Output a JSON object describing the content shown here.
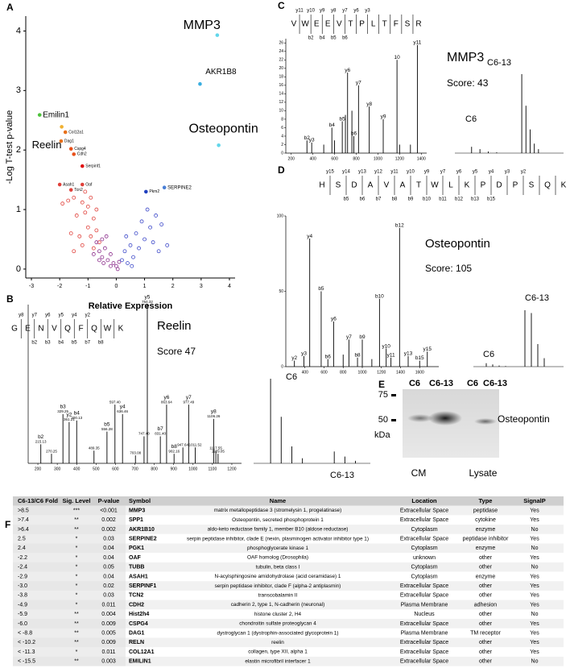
{
  "chart_data": [
    {
      "type": "scatter",
      "panel": "A",
      "x_label": "Relative Expression",
      "y_label": "-Log T-test p-value",
      "xlim": [
        -3.2,
        4.2
      ],
      "ylim": [
        -0.15,
        4.25
      ],
      "xticks": [
        -3,
        -2,
        -1,
        0,
        1,
        2,
        3,
        4
      ],
      "yticks": [
        0,
        1,
        2,
        3,
        4
      ],
      "series": [
        {
          "color": "#e0403a",
          "x": [
            -1.9,
            -1.7,
            -1.5,
            -1.2,
            -1.0,
            -0.9,
            -1.4,
            -1.1,
            -0.8,
            -1.6,
            -1.3,
            -1.0,
            -0.9,
            -0.7,
            -1.2,
            -0.8,
            -1.5,
            -0.6,
            -1.1,
            -0.7
          ],
          "values": [
            1.1,
            1.15,
            1.2,
            1.12,
            1.05,
            1.2,
            0.9,
            0.95,
            0.85,
            0.6,
            0.55,
            0.7,
            0.55,
            0.65,
            0.4,
            0.35,
            0.3,
            0.45,
            1.3,
            1.0
          ]
        },
        {
          "color": "#8a2a8a",
          "x": [
            -0.8,
            -0.6,
            -0.5,
            -0.4,
            -0.3,
            -0.2,
            -0.1,
            0,
            0.1,
            -0.5,
            -0.7,
            -0.35,
            -0.2,
            0.05,
            -0.6,
            -0.45
          ],
          "values": [
            0.25,
            0.3,
            0.2,
            0.35,
            0.15,
            0.25,
            0.1,
            0.05,
            0.12,
            0.5,
            0.45,
            0.55,
            0.05,
            0.0,
            0.15,
            0.1
          ]
        },
        {
          "color": "#3a46c8",
          "x": [
            0.2,
            0.3,
            0.4,
            0.5,
            0.6,
            0.7,
            0.8,
            0.9,
            1.0,
            1.1,
            1.2,
            1.3,
            1.4,
            1.6,
            1.8,
            0.35,
            0.55,
            1.5
          ],
          "values": [
            0.15,
            0.3,
            0.1,
            0.4,
            0.2,
            0.6,
            0.35,
            0.8,
            0.5,
            1.0,
            0.7,
            0.45,
            0.9,
            0.75,
            0.4,
            0.55,
            0.05,
            0.3
          ]
        }
      ],
      "annotations": [
        {
          "text": "MMP3",
          "x": 3.57,
          "y": 3.93,
          "color": "#62d6ea"
        },
        {
          "text": "AKR1B8",
          "x": 2.96,
          "y": 3.11,
          "color": "#3aaee0"
        },
        {
          "text": "Osteopontin",
          "x": 3.62,
          "y": 2.08,
          "color": "#62d6ea"
        },
        {
          "text": "SERPINE2",
          "x": 1.7,
          "y": 1.37,
          "color": "#4a7fd6"
        },
        {
          "text": "Emilin1",
          "x": -2.71,
          "y": 2.59,
          "color": "#4cc23a"
        },
        {
          "text": "Reelin",
          "x": -1.93,
          "y": 2.39,
          "color": "#f0b030"
        },
        {
          "text": "Col12a1",
          "x": -1.8,
          "y": 2.3,
          "color": "#e8701a"
        },
        {
          "text": "Dag1",
          "x": -1.95,
          "y": 2.15,
          "color": "#e8701a"
        },
        {
          "text": "Cspg4",
          "x": -1.6,
          "y": 2.02,
          "color": "#e8501a"
        },
        {
          "text": "Cdh2",
          "x": -1.5,
          "y": 1.93,
          "color": "#e8501a"
        },
        {
          "text": "Serpinf1",
          "x": -1.2,
          "y": 1.73,
          "color": "#e01010"
        },
        {
          "text": "Asah1",
          "x": -2.0,
          "y": 1.42,
          "color": "#e0403a"
        },
        {
          "text": "Oaf",
          "x": -1.2,
          "y": 1.42,
          "color": "#e0403a"
        },
        {
          "text": "Tcn2",
          "x": -1.6,
          "y": 1.33,
          "color": "#e0403a"
        },
        {
          "text": "Pkm2",
          "x": 1.05,
          "y": 1.3,
          "color": "#1f3fbf"
        }
      ]
    },
    {
      "type": "spectrum",
      "panel": "B",
      "title": "Reelin",
      "score": "Score 47",
      "sequence": [
        "G",
        "E",
        "N",
        "V",
        "Q",
        "F",
        "Q",
        "W",
        "K"
      ],
      "y_ions": [
        "y8",
        "y7",
        "y6",
        "y5",
        "y4",
        "y2"
      ],
      "b_ions": [
        "b2",
        "b3",
        "b4",
        "b5",
        "b7",
        "b8"
      ],
      "xlim": [
        150,
        1250
      ],
      "ylim": [
        0,
        100
      ],
      "xticks": [
        200,
        300,
        400,
        500,
        600,
        700,
        800,
        900,
        1000,
        1100,
        1200
      ],
      "x": [
        215.13,
        270.25,
        329.25,
        361.21,
        400.13,
        489.35,
        556.28,
        597.4,
        636.46,
        703.08,
        747.4,
        764.32,
        831.4,
        863.64,
        902.16,
        947.64,
        977.49,
        1011.52,
        1106.26,
        1117.55,
        1129.05
      ],
      "values": [
        12,
        6,
        31,
        26,
        27,
        8,
        20,
        37,
        31,
        5,
        17,
        100,
        17,
        37,
        6,
        10,
        37,
        10,
        28,
        8,
        6
      ],
      "ion_labels": [
        "b2",
        null,
        "b3",
        "y2",
        "b4",
        null,
        "b5",
        null,
        "y4",
        null,
        null,
        "y5",
        "b7",
        "y6",
        "b8",
        null,
        "y7",
        null,
        "y8",
        null,
        null
      ],
      "x_labels": [
        "215.13",
        "270.25",
        "329.25",
        "361.21",
        "400.13",
        "489.35",
        "556.28",
        "597.40",
        "636.46",
        "703.08",
        "747.40",
        "764.32",
        "831.40",
        "863.64",
        "902.16",
        "947.64",
        "977.49",
        "1011.52",
        "1106.26",
        "1117.55",
        "1129.05"
      ],
      "inset": {
        "x": [
          690.3,
          690.8,
          691.3,
          691.8,
          693.3,
          693.8,
          694.3
        ],
        "values": [
          100,
          55,
          20,
          6,
          14,
          8,
          3
        ],
        "xlim": [
          689.5,
          695
        ],
        "ylim": [
          0,
          100
        ],
        "labels": [
          "C6",
          "C6-13"
        ]
      }
    },
    {
      "type": "spectrum",
      "panel": "C",
      "title": "MMP3",
      "score": "Score: 43",
      "sequence": [
        "V",
        "W",
        "E",
        "E",
        "V",
        "T",
        "P",
        "L",
        "T",
        "F",
        "S",
        "R"
      ],
      "y_ions": [
        "y11",
        "y10",
        "y9",
        "y8",
        "y7",
        "y6",
        "y3"
      ],
      "b_ions": [
        "b2",
        "b4",
        "b5",
        "b6"
      ],
      "xlim": [
        150,
        1450
      ],
      "ylim": [
        0,
        27
      ],
      "xticks": [
        200,
        400,
        600,
        800,
        1000,
        1200,
        1400
      ],
      "yticks": [
        0,
        2,
        4,
        6,
        8,
        10,
        12,
        14,
        16,
        18,
        20,
        22,
        24,
        26
      ],
      "x": [
        345,
        389,
        500,
        575,
        600,
        671,
        700,
        720,
        760,
        778,
        821,
        920,
        1049,
        1176,
        1200,
        1300,
        1364
      ],
      "values": [
        3,
        2.5,
        2,
        6,
        3,
        7.5,
        9,
        19,
        10,
        4,
        16,
        11,
        8,
        22,
        2,
        2,
        25.5
      ],
      "ion_labels": [
        "b2",
        "y3",
        null,
        "b4",
        null,
        "b5",
        null,
        "y6",
        null,
        "b6",
        "y7",
        "y8",
        "y9",
        "10",
        null,
        null,
        "y11"
      ],
      "inset": {
        "x": [
          1000,
          1001,
          1002,
          1003,
          1006,
          1006.5,
          1007,
          1007.5,
          1008
        ],
        "values": [
          8,
          5,
          2,
          1,
          100,
          60,
          30,
          12,
          5
        ],
        "xlim": [
          998,
          1011
        ],
        "ylim": [
          0,
          100
        ],
        "labels": [
          "C6",
          "C6-13"
        ]
      }
    },
    {
      "type": "spectrum",
      "panel": "D",
      "title": "Osteopontin",
      "score": "Score: 105",
      "sequence": [
        "H",
        "S",
        "D",
        "A",
        "V",
        "A",
        "T",
        "W",
        "L",
        "K",
        "P",
        "D",
        "P",
        "S",
        "Q",
        "K"
      ],
      "y_ions": [
        "y15",
        "y14",
        "y13",
        "y12",
        "y11",
        "y10",
        "y9",
        "y7",
        "y6",
        "y5",
        "y4",
        "y3",
        "y2"
      ],
      "b_ions": [
        "b5",
        "b6",
        "b7",
        "b8",
        "b9",
        "b10",
        "b11",
        "b12",
        "b13",
        "b15"
      ],
      "xlim": [
        200,
        1800
      ],
      "ylim": [
        0,
        100
      ],
      "xticks": [
        400,
        600,
        800,
        1000,
        1200,
        1400,
        1600
      ],
      "yticks": [
        0,
        50,
        100
      ],
      "x": [
        290,
        390,
        450,
        570,
        640,
        700,
        800,
        860,
        950,
        1000,
        1100,
        1180,
        1250,
        1300,
        1390,
        1480,
        1600,
        1680
      ],
      "values": [
        4,
        7,
        85,
        50,
        5,
        30,
        8,
        18,
        6,
        18,
        5,
        45,
        12,
        6,
        92,
        7,
        4,
        10
      ],
      "ion_labels": [
        "y2",
        "y3",
        "y4",
        "b5",
        "b6",
        "y6",
        null,
        "y7",
        "b8",
        "b9",
        null,
        "b10",
        "y10",
        "y11",
        "b12",
        "y13",
        "b15",
        "y15"
      ],
      "inset": {
        "x": [
          680,
          681,
          682,
          683,
          686,
          687,
          688,
          689
        ],
        "values": [
          6,
          4,
          2,
          1,
          100,
          95,
          40,
          15
        ],
        "xlim": [
          678,
          692
        ],
        "ylim": [
          0,
          100
        ],
        "labels": [
          "C6",
          "C6-13"
        ]
      }
    }
  ],
  "blot": {
    "panel": "E",
    "lanes": [
      "C6",
      "C6-13",
      "C6",
      "C6-13"
    ],
    "markers": [
      "75",
      "50"
    ],
    "unit": "kDa",
    "band_label": "Osteopontin",
    "groups": [
      "CM",
      "Lysate"
    ]
  },
  "table": {
    "panel": "F",
    "header": [
      "C6-13/C6 Fold",
      "Sig. Level",
      "P-value",
      "Symbol",
      "Name",
      "Location",
      "Type",
      "SignalP"
    ],
    "rows": [
      [
        ">8.5",
        "***",
        "<0.001",
        "MMP3",
        "matrix metallopeptidase 3 (stromelysin 1, progelatinase)",
        "Extracellular Space",
        "peptidase",
        "Yes"
      ],
      [
        ">7.4",
        "**",
        "0.002",
        "SPP1",
        "Osteopontin, secreted phosphoprotein 1",
        "Extracellular Space",
        "cytokine",
        "Yes"
      ],
      [
        ">6.4",
        "**",
        "0.002",
        "AKR1B10",
        "aldo-keto reductase family 1, member B10 (aldose reductase)",
        "Cytoplasm",
        "enzyme",
        "No"
      ],
      [
        "2.5",
        "*",
        "0.03",
        "SERPINE2",
        "serpin peptidase inhibitor, clade E (nexin, plasminogen activator inhibitor type 1)",
        "Extracellular Space",
        "peptidase inhibitor",
        "Yes"
      ],
      [
        "2.4",
        "*",
        "0.04",
        "PGK1",
        "phosphoglycerate kinase 1",
        "Cytoplasm",
        "enzyme",
        "No"
      ],
      [
        "-2.2",
        "*",
        "0.04",
        "OAF",
        "OAF homolog (Drosophila)",
        "unknown",
        "other",
        "Yes"
      ],
      [
        "-2.4",
        "*",
        "0.05",
        "TUBB",
        "tubulin, beta class I",
        "Cytoplasm",
        "other",
        "No"
      ],
      [
        "-2.9",
        "*",
        "0.04",
        "ASAH1",
        "N-acylsphingosine amidohydrolase (acid ceramidase) 1",
        "Cytoplasm",
        "enzyme",
        "Yes"
      ],
      [
        "-3.0",
        "*",
        "0.02",
        "SERPINF1",
        "serpin peptidase inhibitor, clade F (alpha-2 antiplasmin)",
        "Extracellular Space",
        "other",
        "Yes"
      ],
      [
        "-3.8",
        "*",
        "0.03",
        "TCN2",
        "transcobalamin II",
        "Extracellular Space",
        "other",
        "Yes"
      ],
      [
        "-4.9",
        "*",
        "0.011",
        "CDH2",
        "cadherin 2, type 1, N-cadherin (neuronal)",
        "Plasma Membrane",
        "adhesion",
        "Yes"
      ],
      [
        "-5.9",
        "**",
        "0.004",
        "Hist2h4",
        "histone cluster 2, H4",
        "Nucleus",
        "other",
        "No"
      ],
      [
        "-6.0",
        "**",
        "0.009",
        "CSPG4",
        "chondroitin sulfate proteoglycan 4",
        "Extracellular Space",
        "other",
        "Yes"
      ],
      [
        "< -8.8",
        "**",
        "0.005",
        "DAG1",
        "dystroglycan 1 (dystrophin-associated glycoprotein 1)",
        "Plasma Membrane",
        "TM receptor",
        "Yes"
      ],
      [
        "< -10.2",
        "**",
        "0.009",
        "RELN",
        "reelin",
        "Extracellular Space",
        "other",
        "Yes"
      ],
      [
        "< -11.3",
        "*",
        "0.011",
        "COL12A1",
        "collagen, type XII, alpha 1",
        "Extracellular Space",
        "other",
        "Yes"
      ],
      [
        "< -15.5",
        "**",
        "0.003",
        "EMILIN1",
        "elastin microfibril interfacer 1",
        "Extracellular Space",
        "other",
        "No"
      ]
    ]
  }
}
